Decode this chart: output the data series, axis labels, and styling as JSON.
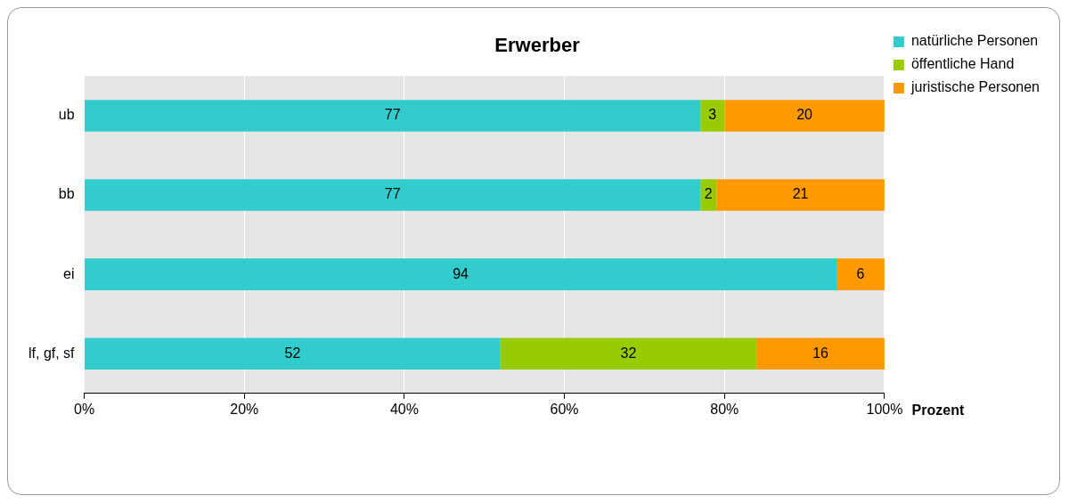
{
  "chart_data": {
    "type": "bar",
    "title": "Erwerber",
    "xlabel": "Prozent",
    "orientation": "horizontal",
    "stacked": true,
    "categories": [
      "ub",
      "bb",
      "ei",
      "lf, gf, sf"
    ],
    "series": [
      {
        "name": "natürliche Personen",
        "color": "#33cccc",
        "values": [
          77,
          77,
          94,
          52
        ]
      },
      {
        "name": "öffentliche Hand",
        "color": "#99cc00",
        "values": [
          3,
          2,
          null,
          32
        ]
      },
      {
        "name": "juristische Personen",
        "color": "#ff9900",
        "values": [
          20,
          21,
          6,
          16
        ]
      }
    ],
    "xlim": [
      0,
      100
    ],
    "xticks": [
      {
        "value": 0,
        "label": "0%"
      },
      {
        "value": 20,
        "label": "20%"
      },
      {
        "value": 40,
        "label": "40%"
      },
      {
        "value": 60,
        "label": "60%"
      },
      {
        "value": 80,
        "label": "80%"
      },
      {
        "value": 100,
        "label": "100%"
      }
    ],
    "grid": "x",
    "legend": "top right",
    "data_labels": true
  }
}
